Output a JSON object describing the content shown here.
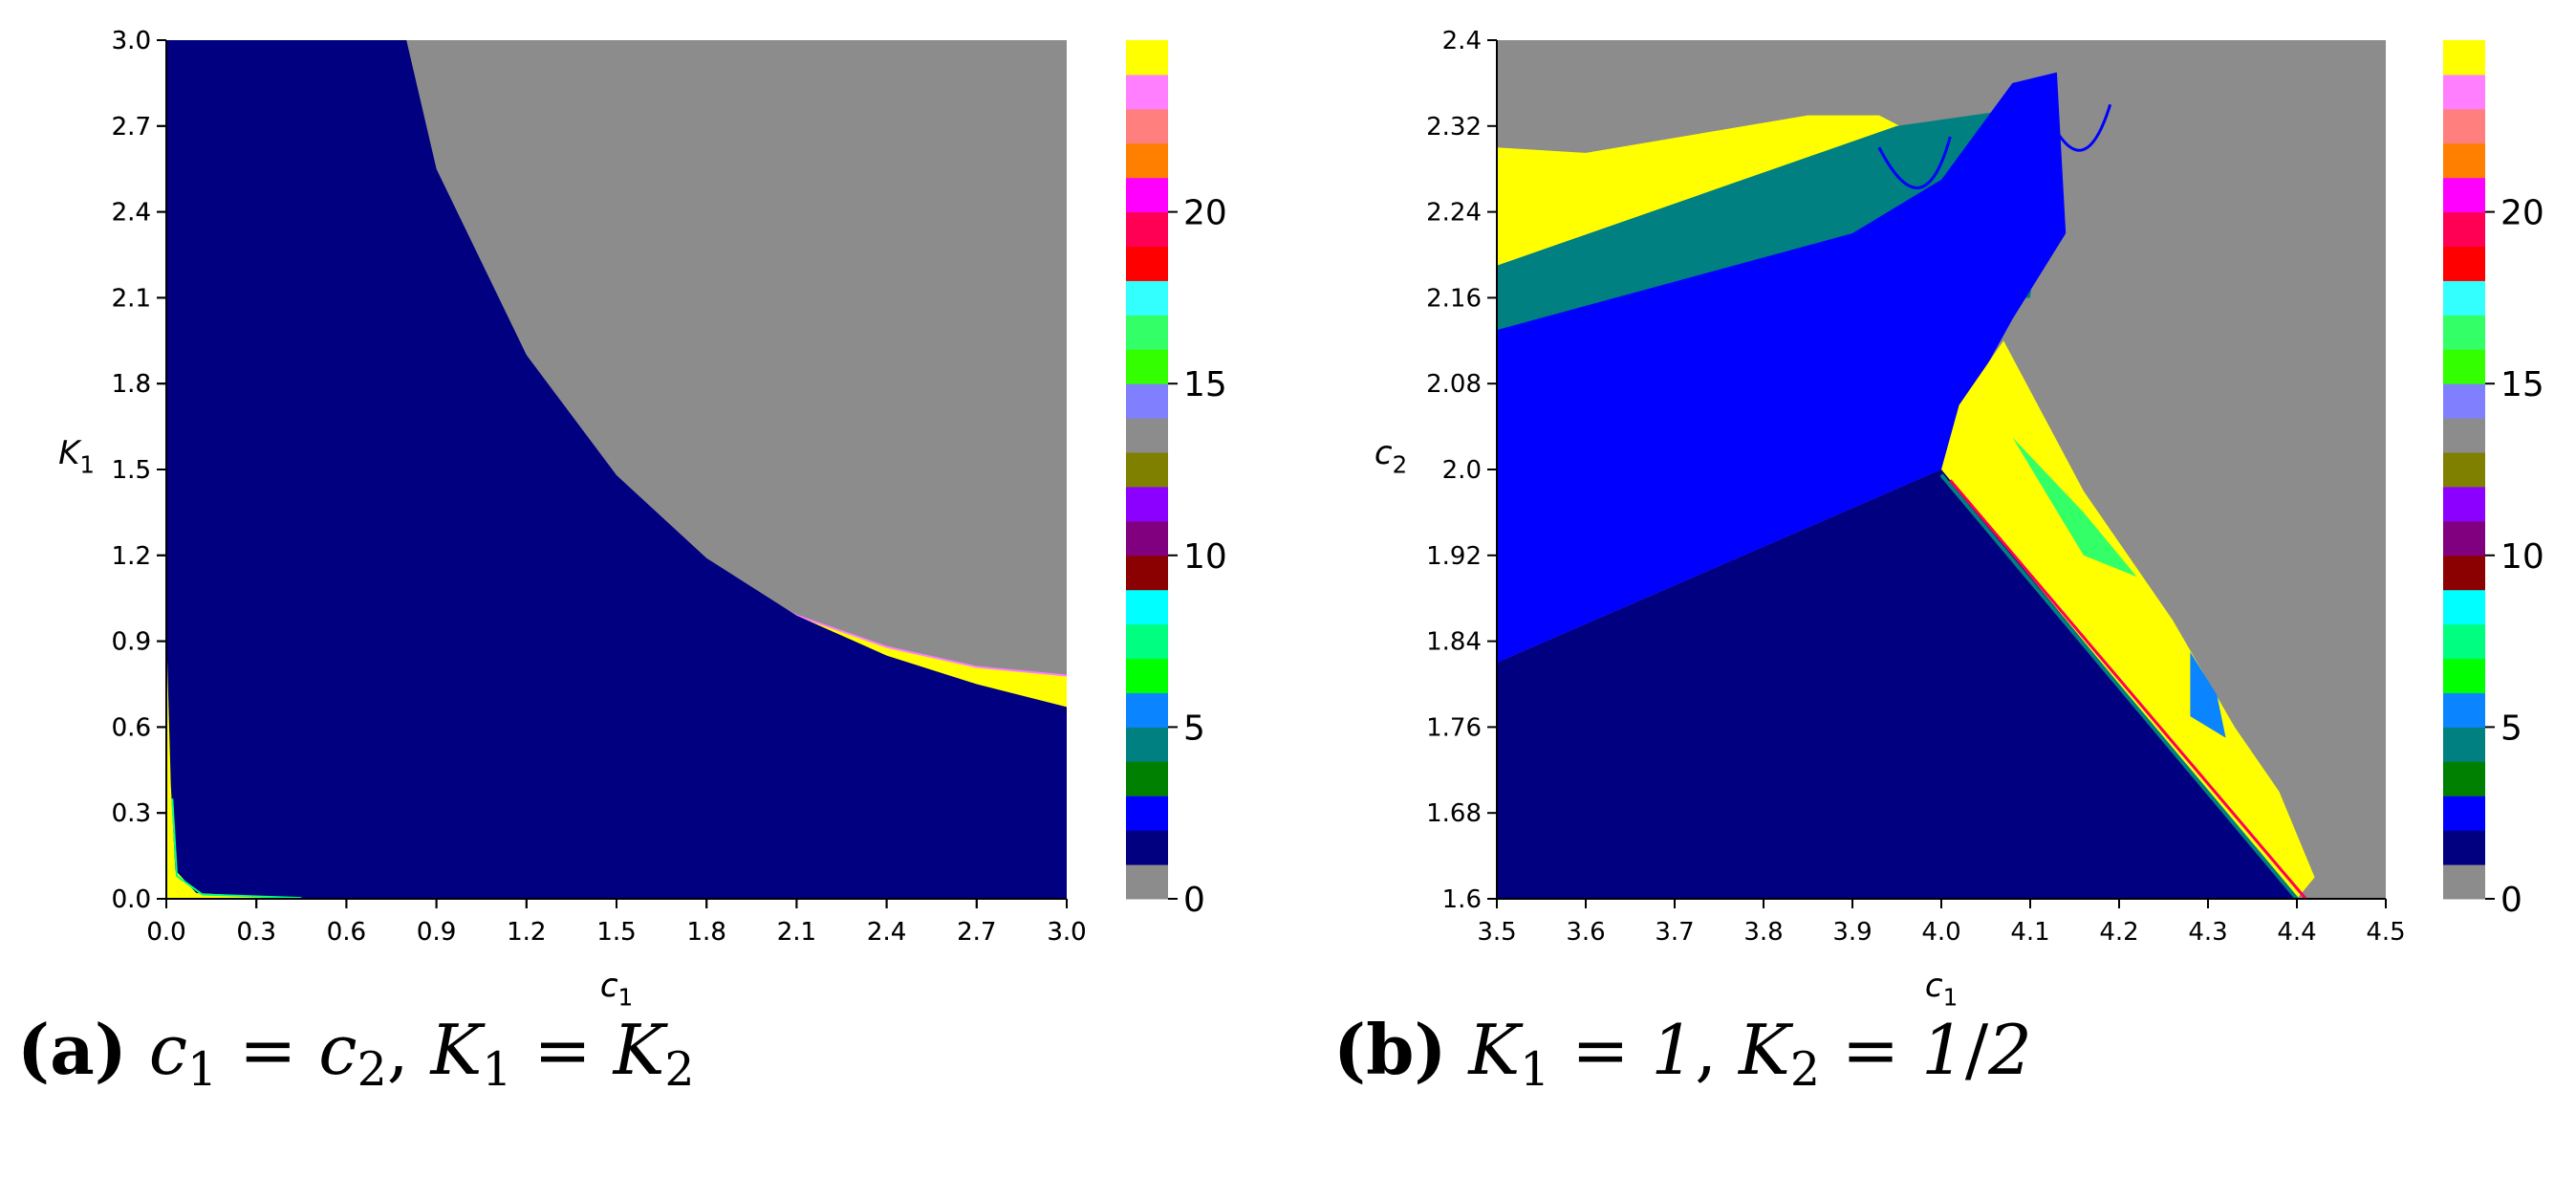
{
  "chart_data": [
    {
      "type": "heatmap",
      "xlabel": "c1",
      "ylabel": "K1",
      "xlim": [
        0.0,
        3.0
      ],
      "ylim": [
        0.0,
        3.0
      ],
      "xticks": [
        "0.0",
        "0.3",
        "0.6",
        "0.9",
        "1.2",
        "1.5",
        "1.8",
        "2.1",
        "2.4",
        "2.7",
        "3.0"
      ],
      "yticks": [
        "0.0",
        "0.3",
        "0.6",
        "0.9",
        "1.2",
        "1.5",
        "1.8",
        "2.1",
        "2.4",
        "2.7",
        "3.0"
      ],
      "colorbar": {
        "range": [
          0,
          24
        ],
        "ticks": [
          "0",
          "5",
          "10",
          "15",
          "20"
        ],
        "colors": [
          "#8c8c8c",
          "#000080",
          "#0000ff",
          "#008000",
          "#008080",
          "#0a84ff",
          "#00ff00",
          "#00ff80",
          "#00ffff",
          "#8b0000",
          "#800080",
          "#8b00ff",
          "#808000",
          "#8c8c8c",
          "#8080ff",
          "#33ff00",
          "#33ff66",
          "#33ffff",
          "#ff0000",
          "#ff0055",
          "#ff00ff",
          "#ff7f00",
          "#ff7f7f",
          "#ff7fff",
          "#ffff00"
        ]
      },
      "regions": [
        {
          "value": 1,
          "color": "#000080",
          "description": "below yellow band, bounded near axes"
        },
        {
          "value": 24,
          "color": "#ffff00",
          "boundary_lower": {
            "c1": [
              0.8,
              0.9,
              1.2,
              1.5,
              1.8,
              2.1,
              2.4,
              2.7,
              3.0
            ],
            "K1": [
              3.0,
              2.55,
              1.9,
              1.48,
              1.19,
              0.99,
              0.85,
              0.75,
              0.67
            ]
          }
        },
        {
          "value": 0,
          "color": "#8c8c8c",
          "boundary_lower": {
            "c1": [
              0.68,
              0.9,
              1.2,
              1.5,
              1.8,
              2.1,
              2.4,
              2.7,
              3.0
            ],
            "K1": [
              3.0,
              2.28,
              1.72,
              1.38,
              1.15,
              0.99,
              0.88,
              0.81,
              0.78
            ]
          }
        }
      ]
    },
    {
      "type": "heatmap",
      "xlabel": "c1",
      "ylabel": "c2",
      "xlim": [
        3.5,
        4.5
      ],
      "ylim": [
        1.6,
        2.4
      ],
      "xticks": [
        "3.5",
        "3.6",
        "3.7",
        "3.8",
        "3.9",
        "4.0",
        "4.1",
        "4.2",
        "4.3",
        "4.4",
        "4.5"
      ],
      "yticks": [
        "1.6",
        "1.68",
        "1.76",
        "1.84",
        "1.92",
        "2.0",
        "2.08",
        "2.16",
        "2.24",
        "2.32",
        "2.4"
      ],
      "colorbar": {
        "range": [
          0,
          24
        ],
        "ticks": [
          "0",
          "5",
          "10",
          "15",
          "20"
        ]
      },
      "regions": [
        {
          "value": 1,
          "color": "#000080",
          "description": "lower triangle below line from (3.5,1.82) to (4.0,2.0) to (4.4,1.6)"
        },
        {
          "value": 2,
          "color": "#0000ff",
          "description": "blue wedge above dark region up to ~2.16"
        },
        {
          "value": 4,
          "color": "#008080",
          "description": "teal band above blue wedge"
        },
        {
          "value": 24,
          "color": "#ffff00",
          "description": "yellow fringes near chaotic boundaries"
        },
        {
          "value": 0,
          "color": "#8c8c8c",
          "description": "grey background elsewhere"
        }
      ]
    }
  ],
  "captions": {
    "a": {
      "label": "(a)",
      "text": "c1 = c2, K1 = K2"
    },
    "b": {
      "label": "(b)",
      "text": "K1 = 1, K2 = 1/2"
    }
  }
}
